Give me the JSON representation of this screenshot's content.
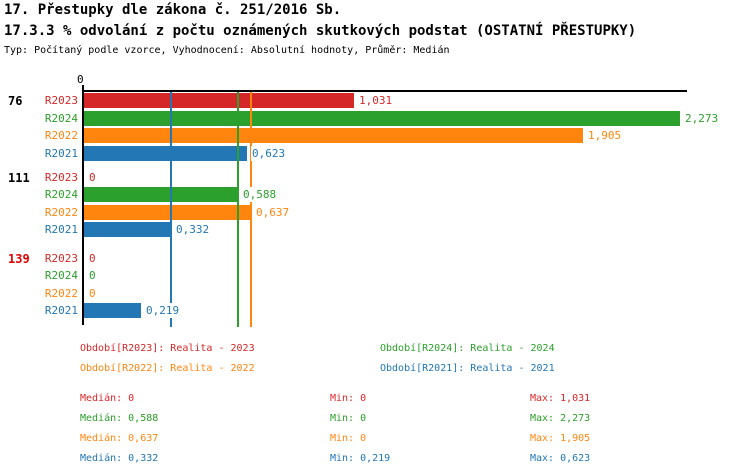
{
  "title": {
    "line1": "17. Přestupky dle zákona č. 251/2016 Sb.",
    "line2": "17.3.3 % odvolání z počtu oznámených skutkových podstat (OSTATNÍ PŘESTUPKY)",
    "meta": "Typ: Počítaný podle vzorce, Vyhodnocení: Absolutní hodnoty, Průměr: Medián"
  },
  "colors": {
    "R2023": "#d62728",
    "R2024": "#2ca02c",
    "R2022": "#ff850e",
    "R2021": "#2277b4",
    "axis": "#000000",
    "highlight": "#e00000"
  },
  "chart_data": {
    "type": "bar",
    "orientation": "horizontal",
    "xlim": [
      0,
      2.3
    ],
    "axis_tick_label": "0",
    "grid": false,
    "series_order": [
      "R2023",
      "R2024",
      "R2022",
      "R2021"
    ],
    "groups": [
      {
        "label": "76",
        "label_color": "#000000",
        "rows": [
          {
            "series": "R2023",
            "value": 1.031,
            "display": "1,031"
          },
          {
            "series": "R2024",
            "value": 2.273,
            "display": "2,273"
          },
          {
            "series": "R2022",
            "value": 1.905,
            "display": "1,905"
          },
          {
            "series": "R2021",
            "value": 0.623,
            "display": "0,623"
          }
        ]
      },
      {
        "label": "111",
        "label_color": "#000000",
        "rows": [
          {
            "series": "R2023",
            "value": 0,
            "display": "0"
          },
          {
            "series": "R2024",
            "value": 0.588,
            "display": "0,588"
          },
          {
            "series": "R2022",
            "value": 0.637,
            "display": "0,637"
          },
          {
            "series": "R2021",
            "value": 0.332,
            "display": "0,332"
          }
        ]
      },
      {
        "label": "139",
        "label_color": "#e00000",
        "rows": [
          {
            "series": "R2023",
            "value": 0,
            "display": "0"
          },
          {
            "series": "R2024",
            "value": 0,
            "display": "0"
          },
          {
            "series": "R2022",
            "value": 0,
            "display": "0"
          },
          {
            "series": "R2021",
            "value": 0.219,
            "display": "0,219"
          }
        ]
      }
    ],
    "median_lines": [
      {
        "series": "R2023",
        "value": 0
      },
      {
        "series": "R2024",
        "value": 0.588
      },
      {
        "series": "R2022",
        "value": 0.637
      },
      {
        "series": "R2021",
        "value": 0.332
      }
    ]
  },
  "legend": [
    {
      "series": "R2023",
      "label": "Období[R2023]: Realita - 2023"
    },
    {
      "series": "R2024",
      "label": "Období[R2024]: Realita - 2024"
    },
    {
      "series": "R2022",
      "label": "Období[R2022]: Realita - 2022"
    },
    {
      "series": "R2021",
      "label": "Období[R2021]: Realita - 2021"
    }
  ],
  "stats": [
    {
      "series": "R2023",
      "median": "Medián: 0",
      "min": "Min: 0",
      "max": "Max: 1,031"
    },
    {
      "series": "R2024",
      "median": "Medián: 0,588",
      "min": "Min: 0",
      "max": "Max: 2,273"
    },
    {
      "series": "R2022",
      "median": "Medián: 0,637",
      "min": "Min: 0",
      "max": "Max: 1,905"
    },
    {
      "series": "R2021",
      "median": "Medián: 0,332",
      "min": "Min: 0,219",
      "max": "Max: 0,623"
    }
  ]
}
